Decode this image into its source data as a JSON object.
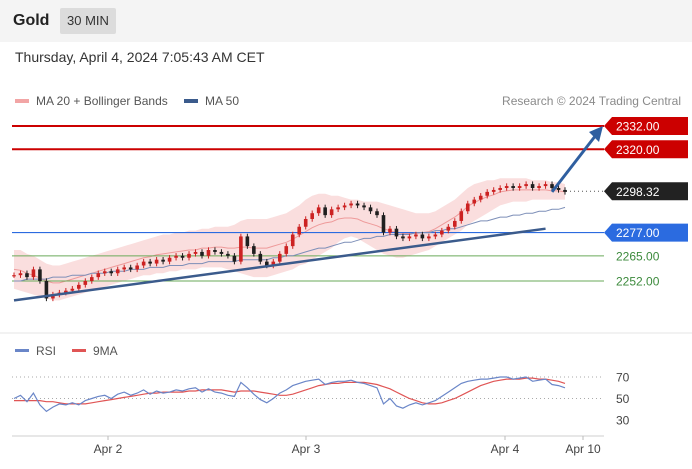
{
  "header": {
    "title": "Gold",
    "timeframe": "30 MIN"
  },
  "datetime": "Thursday, April 4, 2024 7:05:43 AM CET",
  "legend": {
    "bollinger": "MA 20 + Bollinger Bands",
    "ma50": "MA 50",
    "credit": "Research © 2024 Trading Central"
  },
  "rsi_legend": {
    "rsi": "RSI",
    "ma9": "9MA"
  },
  "colors": {
    "resistance": "#cc0000",
    "support": "#2b6be0",
    "support_line": "#6aaa5a",
    "bands": "#f6c8c8",
    "ma50": "#3b5b8c",
    "candle": "#1f1f1f",
    "up_candle": "#cc2222",
    "rsi": "#6a86c8",
    "rsi_ma": "#e05555",
    "arrow": "#2f5fa0"
  },
  "chart_data": [
    {
      "type": "candlestick",
      "ylim": [
        2240,
        2340
      ],
      "levels": [
        {
          "value": 2332.0,
          "label": "2332.00",
          "kind": "resistance"
        },
        {
          "value": 2320.0,
          "label": "2320.00",
          "kind": "resistance"
        },
        {
          "value": 2298.32,
          "label": "2298.32",
          "kind": "current"
        },
        {
          "value": 2277.0,
          "label": "2277.00",
          "kind": "pivot"
        },
        {
          "value": 2265.0,
          "label": "2265.00",
          "kind": "support"
        },
        {
          "value": 2252.0,
          "label": "2252.00",
          "kind": "support"
        }
      ],
      "x_ticks": [
        "Apr 2",
        "Apr 3",
        "Apr 4",
        "Apr 10"
      ],
      "closes": [
        2255,
        2256,
        2254,
        2258,
        2252,
        2243,
        2245,
        2246,
        2247,
        2248,
        2250,
        2252,
        2254,
        2256,
        2257,
        2256,
        2258,
        2259,
        2258,
        2260,
        2262,
        2261,
        2263,
        2262,
        2264,
        2265,
        2264,
        2266,
        2267,
        2265,
        2268,
        2267,
        2266,
        2265,
        2262,
        2275,
        2270,
        2266,
        2262,
        2260,
        2262,
        2266,
        2270,
        2276,
        2280,
        2284,
        2287,
        2290,
        2286,
        2289,
        2290,
        2291,
        2292,
        2291,
        2290,
        2288,
        2286,
        2277,
        2279,
        2275,
        2274,
        2275,
        2276,
        2274,
        2275,
        2276,
        2278,
        2280,
        2283,
        2288,
        2292,
        2294,
        2296,
        2298,
        2299,
        2300,
        2301,
        2300,
        2301,
        2302,
        2300,
        2301,
        2302,
        2300,
        2299,
        2298
      ],
      "bollinger": {
        "upper": [
          2268,
          2268,
          2266,
          2265,
          2263,
          2261,
          2260,
          2260,
          2261,
          2262,
          2263,
          2264,
          2265,
          2266,
          2267,
          2268,
          2269,
          2270,
          2271,
          2272,
          2273,
          2274,
          2275,
          2276,
          2276,
          2277,
          2277,
          2278,
          2278,
          2279,
          2279,
          2280,
          2280,
          2280,
          2281,
          2283,
          2284,
          2284,
          2284,
          2284,
          2285,
          2286,
          2287,
          2289,
          2291,
          2294,
          2296,
          2297,
          2297,
          2296,
          2296,
          2295,
          2294,
          2294,
          2293,
          2293,
          2293,
          2292,
          2291,
          2290,
          2289,
          2288,
          2287,
          2287,
          2287,
          2288,
          2290,
          2292,
          2294,
          2297,
          2300,
          2302,
          2303,
          2304,
          2304,
          2305,
          2305,
          2305,
          2305,
          2305,
          2304,
          2304,
          2304,
          2303,
          2303,
          2302
        ],
        "lower": [
          2248,
          2247,
          2246,
          2245,
          2244,
          2243,
          2242,
          2242,
          2243,
          2244,
          2245,
          2246,
          2247,
          2248,
          2249,
          2250,
          2251,
          2252,
          2253,
          2254,
          2255,
          2255,
          2256,
          2256,
          2257,
          2257,
          2258,
          2258,
          2258,
          2259,
          2259,
          2259,
          2259,
          2258,
          2257,
          2256,
          2255,
          2254,
          2254,
          2254,
          2255,
          2256,
          2257,
          2258,
          2260,
          2261,
          2263,
          2265,
          2267,
          2269,
          2272,
          2274,
          2275,
          2274,
          2272,
          2270,
          2268,
          2266,
          2265,
          2264,
          2264,
          2265,
          2266,
          2267,
          2268,
          2270,
          2272,
          2274,
          2276,
          2278,
          2281,
          2283,
          2285,
          2287,
          2289,
          2291,
          2292,
          2293,
          2293,
          2293,
          2294,
          2294,
          2294,
          2294,
          2294,
          2294
        ]
      },
      "ma50": [
        2252,
        2252,
        2253,
        2253,
        2253,
        2253,
        2254,
        2254,
        2254,
        2255,
        2255,
        2255,
        2256,
        2256,
        2256,
        2257,
        2257,
        2257,
        2258,
        2258,
        2258,
        2259,
        2259,
        2259,
        2260,
        2260,
        2260,
        2261,
        2261,
        2261,
        2262,
        2262,
        2262,
        2262,
        2262,
        2263,
        2263,
        2263,
        2263,
        2263,
        2264,
        2264,
        2265,
        2265,
        2266,
        2267,
        2268,
        2269,
        2269,
        2270,
        2271,
        2272,
        2272,
        2273,
        2274,
        2274,
        2275,
        2275,
        2276,
        2276,
        2276,
        2276,
        2277,
        2277,
        2277,
        2278,
        2278,
        2279,
        2279,
        2280,
        2281,
        2282,
        2283,
        2283,
        2284,
        2285,
        2285,
        2286,
        2286,
        2287,
        2287,
        2288,
        2288,
        2289,
        2289,
        2290
      ],
      "trendline": [
        [
          0,
          2242
        ],
        [
          82,
          2279
        ]
      ],
      "projection": [
        [
          83,
          2298
        ],
        [
          88,
          2332
        ]
      ]
    },
    {
      "type": "line",
      "ylim": [
        30,
        75
      ],
      "y_ticks": [
        70,
        50,
        30
      ],
      "guide_levels": [
        70,
        50,
        30
      ],
      "rsi": [
        50,
        53,
        47,
        55,
        44,
        38,
        42,
        45,
        44,
        46,
        44,
        48,
        50,
        52,
        53,
        50,
        54,
        56,
        53,
        55,
        58,
        54,
        57,
        55,
        56,
        58,
        57,
        59,
        60,
        56,
        59,
        56,
        55,
        53,
        52,
        65,
        60,
        54,
        49,
        46,
        50,
        55,
        58,
        62,
        64,
        66,
        67,
        68,
        63,
        65,
        66,
        66,
        67,
        65,
        64,
        62,
        60,
        45,
        50,
        43,
        41,
        44,
        46,
        44,
        46,
        48,
        52,
        56,
        60,
        64,
        66,
        67,
        68,
        68,
        69,
        70,
        70,
        68,
        69,
        70,
        66,
        67,
        68,
        63,
        62,
        60
      ],
      "ma9": [
        48,
        48,
        48,
        48,
        48,
        47,
        47,
        46,
        45,
        45,
        45,
        45,
        46,
        47,
        48,
        49,
        50,
        51,
        52,
        53,
        54,
        55,
        55,
        56,
        56,
        56,
        56,
        57,
        57,
        58,
        58,
        58,
        58,
        57,
        56,
        57,
        57,
        57,
        56,
        55,
        54,
        53,
        53,
        54,
        56,
        58,
        60,
        62,
        63,
        64,
        64,
        65,
        65,
        65,
        65,
        64,
        63,
        61,
        59,
        56,
        53,
        50,
        48,
        46,
        45,
        45,
        46,
        48,
        50,
        53,
        56,
        59,
        62,
        64,
        66,
        67,
        68,
        68,
        68,
        69,
        69,
        68,
        68,
        67,
        66,
        64
      ]
    }
  ]
}
